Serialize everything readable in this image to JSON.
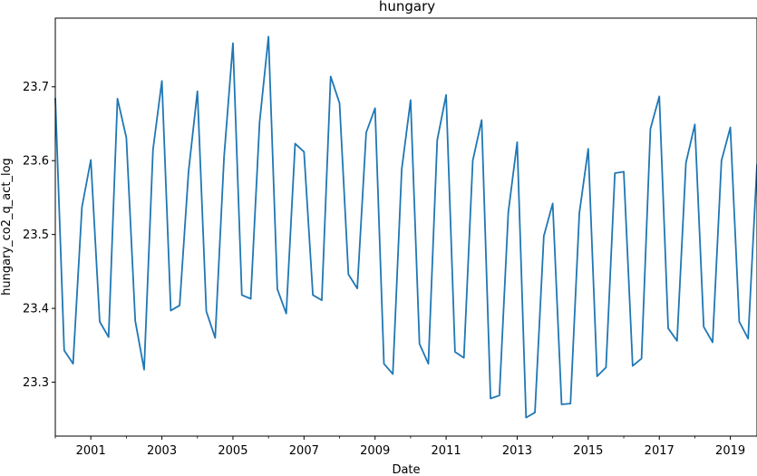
{
  "chart_data": {
    "type": "line",
    "title": "hungary",
    "xlabel": "Date",
    "ylabel": "hungary_co2_q_act_log",
    "xlim": [
      2000.0,
      2019.75
    ],
    "ylim": [
      23.227,
      23.793
    ],
    "xticks": [
      2001,
      2003,
      2005,
      2007,
      2009,
      2011,
      2013,
      2015,
      2017,
      2019
    ],
    "yticks": [
      23.3,
      23.4,
      23.5,
      23.6,
      23.7
    ],
    "ytick_labels": [
      "23.3",
      "23.4",
      "23.5",
      "23.6",
      "23.7"
    ],
    "grid": false,
    "line_color": "#1f77b4",
    "series": [
      {
        "x": [
          "2000-01",
          "2000-04",
          "2000-07",
          "2000-10",
          "2001-01",
          "2001-04",
          "2001-07",
          "2001-10",
          "2002-01",
          "2002-04",
          "2002-07",
          "2002-10",
          "2003-01",
          "2003-04",
          "2003-07",
          "2003-10",
          "2004-01",
          "2004-04",
          "2004-07",
          "2004-10",
          "2005-01",
          "2005-04",
          "2005-07",
          "2005-10",
          "2006-01",
          "2006-04",
          "2006-07",
          "2006-10",
          "2007-01",
          "2007-04",
          "2007-07",
          "2007-10",
          "2008-01",
          "2008-04",
          "2008-07",
          "2008-10",
          "2009-01",
          "2009-04",
          "2009-07",
          "2009-10",
          "2010-01",
          "2010-04",
          "2010-07",
          "2010-10",
          "2011-01",
          "2011-04",
          "2011-07",
          "2011-10",
          "2012-01",
          "2012-04",
          "2012-07",
          "2012-10",
          "2013-01",
          "2013-04",
          "2013-07",
          "2013-10",
          "2014-01",
          "2014-04",
          "2014-07",
          "2014-10",
          "2015-01",
          "2015-04",
          "2015-07",
          "2015-10",
          "2016-01",
          "2016-04",
          "2016-07",
          "2016-10",
          "2017-01",
          "2017-04",
          "2017-07",
          "2017-10",
          "2018-01",
          "2018-04",
          "2018-07",
          "2018-10",
          "2019-01",
          "2019-04",
          "2019-07",
          "2019-10"
        ],
        "y": [
          23.685,
          23.343,
          23.325,
          23.537,
          23.601,
          23.382,
          23.361,
          23.684,
          23.631,
          23.383,
          23.317,
          23.615,
          23.708,
          23.397,
          23.404,
          23.585,
          23.694,
          23.396,
          23.36,
          23.605,
          23.759,
          23.418,
          23.413,
          23.652,
          23.768,
          23.426,
          23.393,
          23.623,
          23.612,
          23.418,
          23.411,
          23.714,
          23.678,
          23.446,
          23.427,
          23.638,
          23.671,
          23.325,
          23.311,
          23.588,
          23.682,
          23.352,
          23.325,
          23.628,
          23.689,
          23.341,
          23.333,
          23.6,
          23.655,
          23.278,
          23.282,
          23.53,
          23.625,
          23.252,
          23.259,
          23.498,
          23.542,
          23.27,
          23.271,
          23.529,
          23.616,
          23.308,
          23.32,
          23.583,
          23.585,
          23.322,
          23.332,
          23.643,
          23.687,
          23.373,
          23.356,
          23.597,
          23.649,
          23.375,
          23.354,
          23.6,
          23.645,
          23.382,
          23.359,
          23.595
        ]
      }
    ]
  }
}
